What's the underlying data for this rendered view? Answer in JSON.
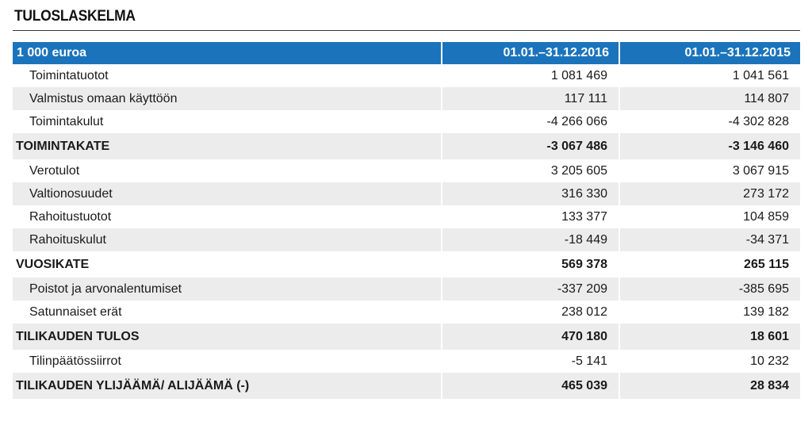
{
  "title": "TULOSLASKELMA",
  "table": {
    "header": {
      "label": "1 000 euroa",
      "col1": "01.01.–31.12.2016",
      "col2": "01.01.–31.12.2015"
    },
    "rows": [
      {
        "label": "Toimintatuotot",
        "v2016": "1 081 469",
        "v2015": "1 041 561"
      },
      {
        "label": "Valmistus omaan käyttöön",
        "v2016": "117 111",
        "v2015": "114 807"
      },
      {
        "label": "Toimintakulut",
        "v2016": "-4 266 066",
        "v2015": "-4 302 828"
      },
      {
        "label": "TOIMINTAKATE",
        "v2016": "-3 067 486",
        "v2015": "-3 146 460"
      },
      {
        "label": "Verotulot",
        "v2016": "3 205 605",
        "v2015": "3 067 915"
      },
      {
        "label": "Valtionosuudet",
        "v2016": "316 330",
        "v2015": "273 172"
      },
      {
        "label": "Rahoitustuotot",
        "v2016": "133 377",
        "v2015": "104 859"
      },
      {
        "label": "Rahoituskulut",
        "v2016": "-18 449",
        "v2015": "-34 371"
      },
      {
        "label": "VUOSIKATE",
        "v2016": "569 378",
        "v2015": "265 115"
      },
      {
        "label": "Poistot ja arvonalentumiset",
        "v2016": "-337 209",
        "v2015": "-385 695"
      },
      {
        "label": "Satunnaiset erät",
        "v2016": "238 012",
        "v2015": "139 182"
      },
      {
        "label": "TILIKAUDEN TULOS",
        "v2016": "470 180",
        "v2015": "18 601"
      },
      {
        "label": "Tilinpäätössiirrot",
        "v2016": "-5 141",
        "v2015": "10 232"
      },
      {
        "label": "TILIKAUDEN YLIJÄÄMÄ/ ALIJÄÄMÄ (-)",
        "v2016": "465 039",
        "v2015": "28 834"
      }
    ]
  }
}
